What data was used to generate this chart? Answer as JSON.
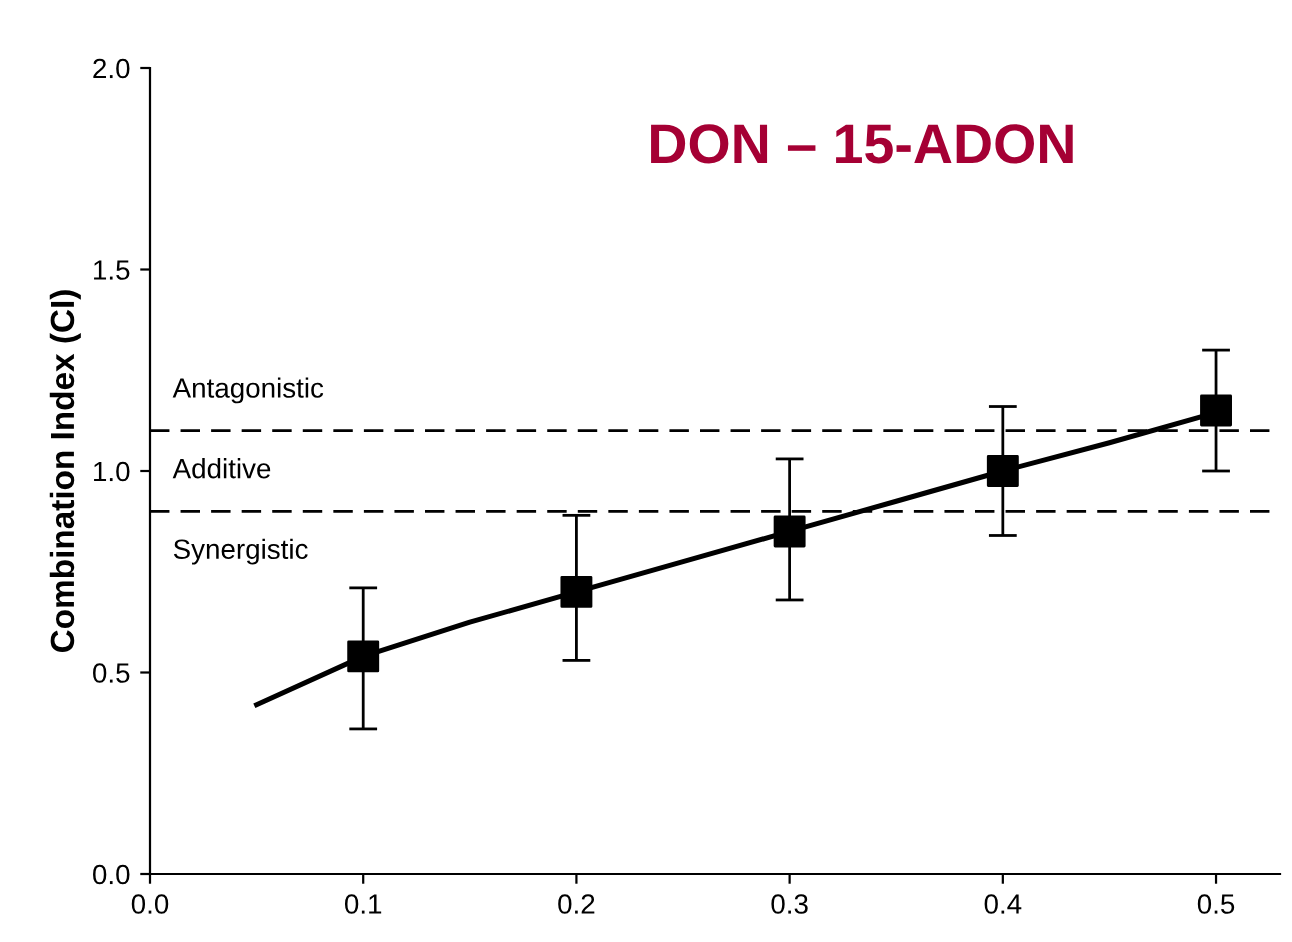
{
  "chart_data": {
    "type": "scatter",
    "title": "DON – 15-ADON",
    "ylabel": "Combination Index (CI)",
    "x": [
      0.1,
      0.2,
      0.3,
      0.4,
      0.5
    ],
    "series": [
      {
        "color": "#000000",
        "marker": "square",
        "values": [
          0.54,
          0.7,
          0.85,
          1.0,
          1.15
        ],
        "errors": [
          [
            0.36,
            0.71
          ],
          [
            0.53,
            0.89
          ],
          [
            0.68,
            1.03
          ],
          [
            0.84,
            1.16
          ],
          [
            1.0,
            1.3
          ]
        ]
      },
      {
        "type": "line",
        "color": "#000000",
        "marker": "none",
        "line_style": "solid",
        "x": [
          0.05,
          0.1,
          0.15,
          0.2,
          0.25,
          0.3,
          0.35,
          0.4,
          0.45,
          0.5
        ],
        "values": [
          0.42,
          0.54,
          0.625,
          0.7,
          0.775,
          0.85,
          0.925,
          1.0,
          1.07,
          1.145
        ]
      }
    ],
    "ref_lines": [
      {
        "axis": "y",
        "value": 1.1,
        "color": "#000000",
        "line_style": "dashed"
      },
      {
        "axis": "y",
        "value": 0.9,
        "color": "#000000",
        "line_style": "dashed"
      }
    ],
    "annotations": [
      "Antagonistic",
      "Additive",
      "Synergistic"
    ],
    "xlim": [
      0,
      0.53
    ],
    "ylim": [
      0,
      2.0
    ],
    "xticks": [
      {
        "value": 0,
        "label": "0.0"
      },
      0.1,
      0.2,
      0.3,
      0.4,
      0.5
    ],
    "yticks": [
      {
        "value": 0,
        "label": "0.0"
      },
      0.5,
      {
        "value": 1,
        "label": "1.0"
      },
      1.5,
      {
        "value": 2,
        "label": "2.0"
      }
    ],
    "grid": false,
    "legend": false
  }
}
